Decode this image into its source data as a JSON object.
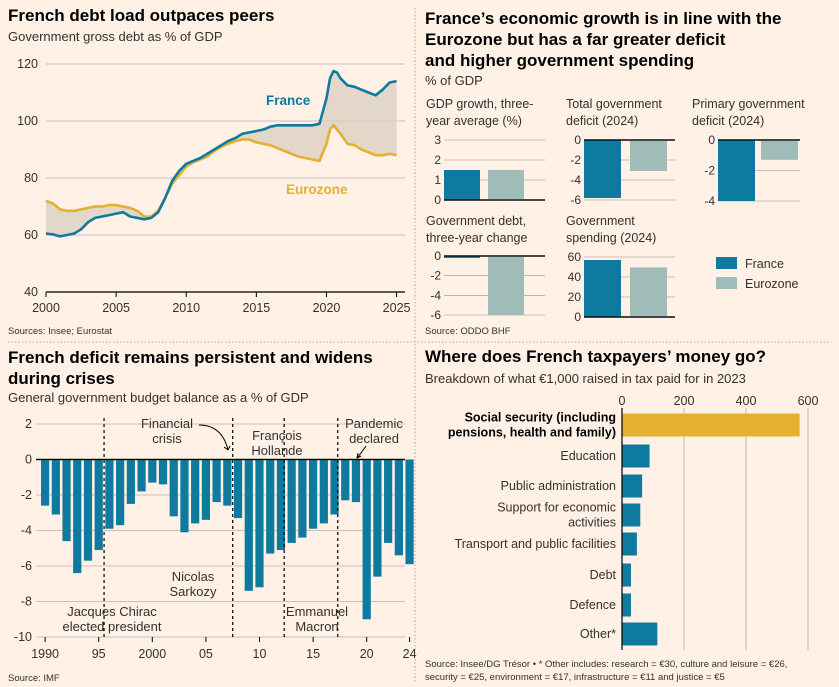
{
  "colors": {
    "france": "#0f7a9f",
    "eurozone": "#e3b12f",
    "eurozone_gray": "#9fbcb9",
    "bg": "#fff1e5",
    "grid": "#33302e",
    "band": "#d9cdbf"
  },
  "panel1": {
    "title": "French debt load outpaces peers",
    "subtitle": "Government gross debt as % of GDP",
    "source": "Sources: Insee; Eurostat",
    "label_france": "France",
    "label_eurozone": "Eurozone"
  },
  "panel2": {
    "title_lines": [
      "France’s economic growth is in line with the",
      "Eurozone but has a far greater deficit",
      "and higher government spending"
    ],
    "subtitle": "% of GDP",
    "source": "Source: ODDO BHF",
    "legend": [
      {
        "label": "France"
      },
      {
        "label": "Eurozone"
      }
    ]
  },
  "panel3": {
    "title_lines": [
      "French deficit remains persistent and widens",
      "during crises"
    ],
    "subtitle": "General government budget balance as a % of GDP",
    "source": "Source: IMF"
  },
  "panel4": {
    "title": "Where does French taxpayers’ money go?",
    "subtitle": "Breakdown of what €1,000 raised in tax paid for in 2023",
    "source_lines": [
      "Source: Insee/DG Trésor • * Other includes: research = €30, culture and leisure = €26,",
      "security = €25, environment = €17, infrastructure = €11 and justice = €5"
    ]
  },
  "chart_data": [
    {
      "type": "line",
      "title": "French debt load outpaces peers",
      "ylabel": "Government gross debt as % of GDP",
      "ylim": [
        40,
        120
      ],
      "yticks": [
        "40",
        "60",
        "80",
        "100",
        "120"
      ],
      "xlim": [
        2000,
        2025.6
      ],
      "xticks": [
        "2000",
        "2005",
        "2010",
        "2015",
        "2020",
        "2025"
      ],
      "series": [
        {
          "name": "France",
          "x": [
            2000,
            2000.5,
            2001,
            2001.5,
            2002,
            2002.5,
            2003,
            2003.5,
            2004,
            2004.5,
            2005,
            2005.5,
            2006,
            2006.5,
            2007,
            2007.5,
            2008,
            2008.5,
            2009,
            2009.5,
            2010,
            2010.5,
            2011,
            2011.5,
            2012,
            2012.5,
            2013,
            2013.5,
            2014,
            2014.5,
            2015,
            2015.5,
            2016,
            2016.5,
            2017,
            2017.5,
            2018,
            2018.5,
            2019,
            2019.5,
            2020,
            2020.25,
            2020.5,
            2020.75,
            2021,
            2021.5,
            2022,
            2022.5,
            2023,
            2023.5,
            2024,
            2024.5,
            2025
          ],
          "y": [
            60.5,
            60.2,
            59.5,
            60,
            60.5,
            62,
            64.5,
            66,
            66.5,
            67,
            67.5,
            68,
            66.5,
            66,
            65.5,
            66,
            68,
            73,
            79,
            82.5,
            85,
            86,
            87,
            88.5,
            90,
            91.5,
            93,
            94,
            95.5,
            96,
            96.5,
            97,
            98,
            98.5,
            98.5,
            98.5,
            98.5,
            98.5,
            98.5,
            99,
            108,
            115,
            117.5,
            117,
            115,
            112.5,
            112,
            111,
            110,
            109,
            111,
            113.5,
            114
          ]
        },
        {
          "name": "Eurozone",
          "x": [
            2000,
            2000.5,
            2001,
            2001.5,
            2002,
            2002.5,
            2003,
            2003.5,
            2004,
            2004.5,
            2005,
            2005.5,
            2006,
            2006.5,
            2007,
            2007.5,
            2008,
            2008.5,
            2009,
            2009.5,
            2010,
            2010.5,
            2011,
            2011.5,
            2012,
            2012.5,
            2013,
            2013.5,
            2014,
            2014.5,
            2015,
            2015.5,
            2016,
            2016.5,
            2017,
            2017.5,
            2018,
            2018.5,
            2019,
            2019.5,
            2020,
            2020.25,
            2020.5,
            2020.75,
            2021,
            2021.5,
            2022,
            2022.5,
            2023,
            2023.5,
            2024,
            2024.5,
            2025
          ],
          "y": [
            72,
            71,
            69,
            68.5,
            68.5,
            69,
            69.5,
            70,
            70,
            70.5,
            70.5,
            70,
            69.5,
            68.5,
            66.5,
            66.5,
            68.5,
            73,
            78,
            81,
            84,
            85.5,
            86.5,
            87.5,
            89.5,
            91,
            92,
            93,
            93.5,
            93.5,
            92.5,
            92,
            91.5,
            90.5,
            89.5,
            88.5,
            87.5,
            87,
            86.5,
            86,
            92,
            97,
            98.5,
            97,
            95.5,
            92,
            91.5,
            90,
            89,
            88,
            88,
            88.5,
            88
          ]
        }
      ]
    },
    {
      "type": "bar",
      "title": "GDP growth, three-year average (%)",
      "title_lines": [
        "GDP growth, three-",
        "year average (%)"
      ],
      "categories": [
        "France",
        "Eurozone"
      ],
      "values": [
        1.5,
        1.5
      ],
      "ylim": [
        0,
        3
      ],
      "yticks": [
        "0",
        "1",
        "2",
        "3"
      ]
    },
    {
      "type": "bar",
      "title": "Total government deficit (2024)",
      "title_lines": [
        "Total government",
        "deficit (2024)"
      ],
      "categories": [
        "France",
        "Eurozone"
      ],
      "values": [
        -5.8,
        -3.1
      ],
      "ylim": [
        -6,
        0
      ],
      "yticks": [
        "0",
        "-2",
        "-4",
        "-6"
      ]
    },
    {
      "type": "bar",
      "title": "Primary government deficit (2024)",
      "title_lines": [
        "Primary government",
        "deficit (2024)"
      ],
      "categories": [
        "France",
        "Eurozone"
      ],
      "values": [
        -4.0,
        -1.3
      ],
      "ylim": [
        -4,
        0
      ],
      "yticks": [
        "0",
        "-2",
        "-4"
      ]
    },
    {
      "type": "bar",
      "title": "Government debt, three-year change",
      "title_lines": [
        "Government debt,",
        "three-year change"
      ],
      "categories": [
        "France",
        "Eurozone"
      ],
      "values": [
        -0.2,
        -6.0
      ],
      "ylim": [
        -6,
        0
      ],
      "yticks": [
        "0",
        "-2",
        "-4",
        "-6"
      ]
    },
    {
      "type": "bar",
      "title": "Government spending (2024)",
      "title_lines": [
        "Government",
        "spending (2024)"
      ],
      "categories": [
        "France",
        "Eurozone"
      ],
      "values": [
        57,
        49.5
      ],
      "ylim": [
        0,
        60
      ],
      "yticks": [
        "0",
        "20",
        "40",
        "60"
      ]
    },
    {
      "type": "bar",
      "title": "French deficit remains persistent and widens during crises",
      "ylabel": "General government budget balance as a % of GDP",
      "years": [
        1990,
        1991,
        1992,
        1993,
        1994,
        1995,
        1996,
        1997,
        1998,
        1999,
        2000,
        2001,
        2002,
        2003,
        2004,
        2005,
        2006,
        2007,
        2008,
        2009,
        2010,
        2011,
        2012,
        2013,
        2014,
        2015,
        2016,
        2017,
        2018,
        2019,
        2020,
        2021,
        2022,
        2023,
        2024
      ],
      "values": [
        -2.6,
        -3.1,
        -4.6,
        -6.4,
        -5.7,
        -5.1,
        -3.9,
        -3.7,
        -2.5,
        -1.8,
        -1.3,
        -1.4,
        -3.2,
        -4.1,
        -3.6,
        -3.4,
        -2.4,
        -2.6,
        -3.3,
        -7.4,
        -7.2,
        -5.3,
        -5.1,
        -4.7,
        -4.4,
        -3.9,
        -3.6,
        -3.1,
        -2.3,
        -2.4,
        -9.0,
        -6.6,
        -4.7,
        -5.4,
        -5.9
      ],
      "ylim": [
        -10,
        2
      ],
      "yticks": [
        "2",
        "0",
        "-2",
        "-4",
        "-6",
        "-8",
        "-10"
      ],
      "xticks": [
        "1990",
        "95",
        "2000",
        "05",
        "10",
        "15",
        "20",
        "24"
      ],
      "annotations": [
        {
          "lines": [
            "Jacques Chirac",
            "elected president"
          ]
        },
        {
          "lines": [
            "Financial",
            "crisis"
          ]
        },
        {
          "lines": [
            "Nicolas",
            "Sarkozy"
          ]
        },
        {
          "lines": [
            "François",
            "Hollande"
          ]
        },
        {
          "lines": [
            "Emmanuel",
            "Macron"
          ]
        },
        {
          "lines": [
            "Pandemic",
            "declared"
          ]
        }
      ]
    },
    {
      "type": "bar",
      "title": "Where does French taxpayers’ money go?",
      "orientation": "horizontal",
      "categories": [
        {
          "lines": [
            "Social security (including",
            "pensions, health and family)"
          ],
          "bold": true
        },
        {
          "lines": [
            "Education"
          ]
        },
        {
          "lines": [
            "Public administration"
          ]
        },
        {
          "lines": [
            "Support for economic",
            "activities"
          ]
        },
        {
          "lines": [
            "Transport and public facilities"
          ]
        },
        {
          "lines": [
            "Debt"
          ]
        },
        {
          "lines": [
            "Defence"
          ]
        },
        {
          "lines": [
            "Other*"
          ]
        }
      ],
      "values": [
        573,
        89,
        65,
        59,
        48,
        29,
        29,
        114
      ],
      "xlim": [
        0,
        600
      ],
      "xticks": [
        "0",
        "200",
        "400",
        "600"
      ]
    }
  ]
}
